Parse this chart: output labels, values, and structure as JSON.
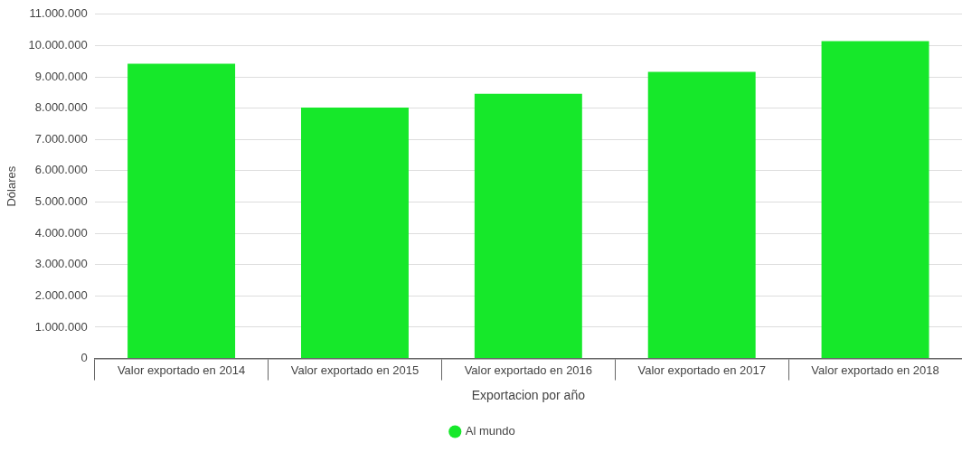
{
  "chart_data": {
    "type": "bar",
    "xlabel": "Exportacion por año",
    "ylabel": "Dólares",
    "categories": [
      "Valor exportado en 2014",
      "Valor exportado en 2015",
      "Valor exportado en 2016",
      "Valor exportado en 2017",
      "Valor exportado en 2018"
    ],
    "series": [
      {
        "name": "Al mundo",
        "color": "#16e82a",
        "values": [
          9420000,
          8020000,
          8460000,
          9160000,
          10140000
        ]
      }
    ],
    "ylim": [
      0,
      11000000
    ],
    "yticks": [
      {
        "value": 0,
        "label": "0"
      },
      {
        "value": 1000000,
        "label": "1.000.000"
      },
      {
        "value": 2000000,
        "label": "2.000.000"
      },
      {
        "value": 3000000,
        "label": "3.000.000"
      },
      {
        "value": 4000000,
        "label": "4.000.000"
      },
      {
        "value": 5000000,
        "label": "5.000.000"
      },
      {
        "value": 6000000,
        "label": "6.000.000"
      },
      {
        "value": 7000000,
        "label": "7.000.000"
      },
      {
        "value": 8000000,
        "label": "8.000.000"
      },
      {
        "value": 9000000,
        "label": "9.000.000"
      },
      {
        "value": 10000000,
        "label": "10.000.000"
      },
      {
        "value": 11000000,
        "label": "11.000.000"
      }
    ],
    "grid": "y",
    "legend": "bottom"
  }
}
